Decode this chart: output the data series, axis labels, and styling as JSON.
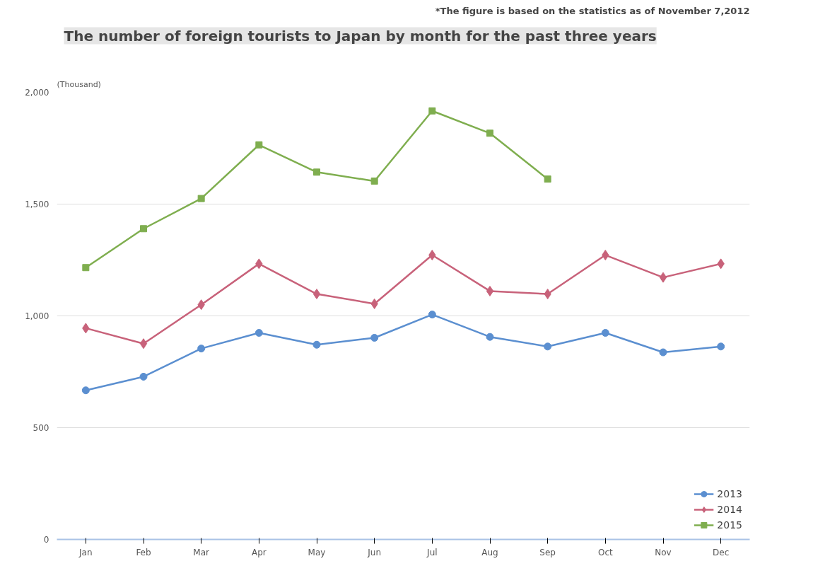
{
  "chart_data": {
    "type": "line",
    "title": "The number of foreign tourists to Japan by month for the past three years",
    "ylabel": "(Thousand)",
    "annotations": [
      "*The figure is based on the statistics as of November 7,2012"
    ],
    "categories": [
      "Jan",
      "Feb",
      "Mar",
      "Apr",
      "May",
      "Jun",
      "Jul",
      "Aug",
      "Sep",
      "Oct",
      "Nov",
      "Dec"
    ],
    "ylim": [
      0,
      2000
    ],
    "yticks": [
      0,
      {
        "value": 500,
        "label": "500"
      },
      {
        "value": 1000,
        "label": "1,000"
      },
      {
        "value": 1500,
        "label": "1,500"
      },
      {
        "value": 2000,
        "label": "2,000"
      }
    ],
    "grid": "y",
    "legend": "bottom right",
    "series": [
      {
        "name": "2013",
        "color": "#5b8fd0",
        "marker": "circle",
        "values": [
          667,
          728,
          854,
          924,
          871,
          902,
          1006,
          906,
          863,
          924,
          837,
          863
        ]
      },
      {
        "name": "2014",
        "color": "#c8627a",
        "marker": "diamond",
        "values": [
          945,
          876,
          1050,
          1233,
          1098,
          1054,
          1272,
          1111,
          1098,
          1272,
          1172,
          1233
        ]
      },
      {
        "name": "2015",
        "color": "#7fae4f",
        "marker": "square",
        "values": [
          1216,
          1390,
          1525,
          1765,
          1643,
          1603,
          1917,
          1817,
          1612,
          null,
          null,
          null
        ]
      }
    ]
  }
}
